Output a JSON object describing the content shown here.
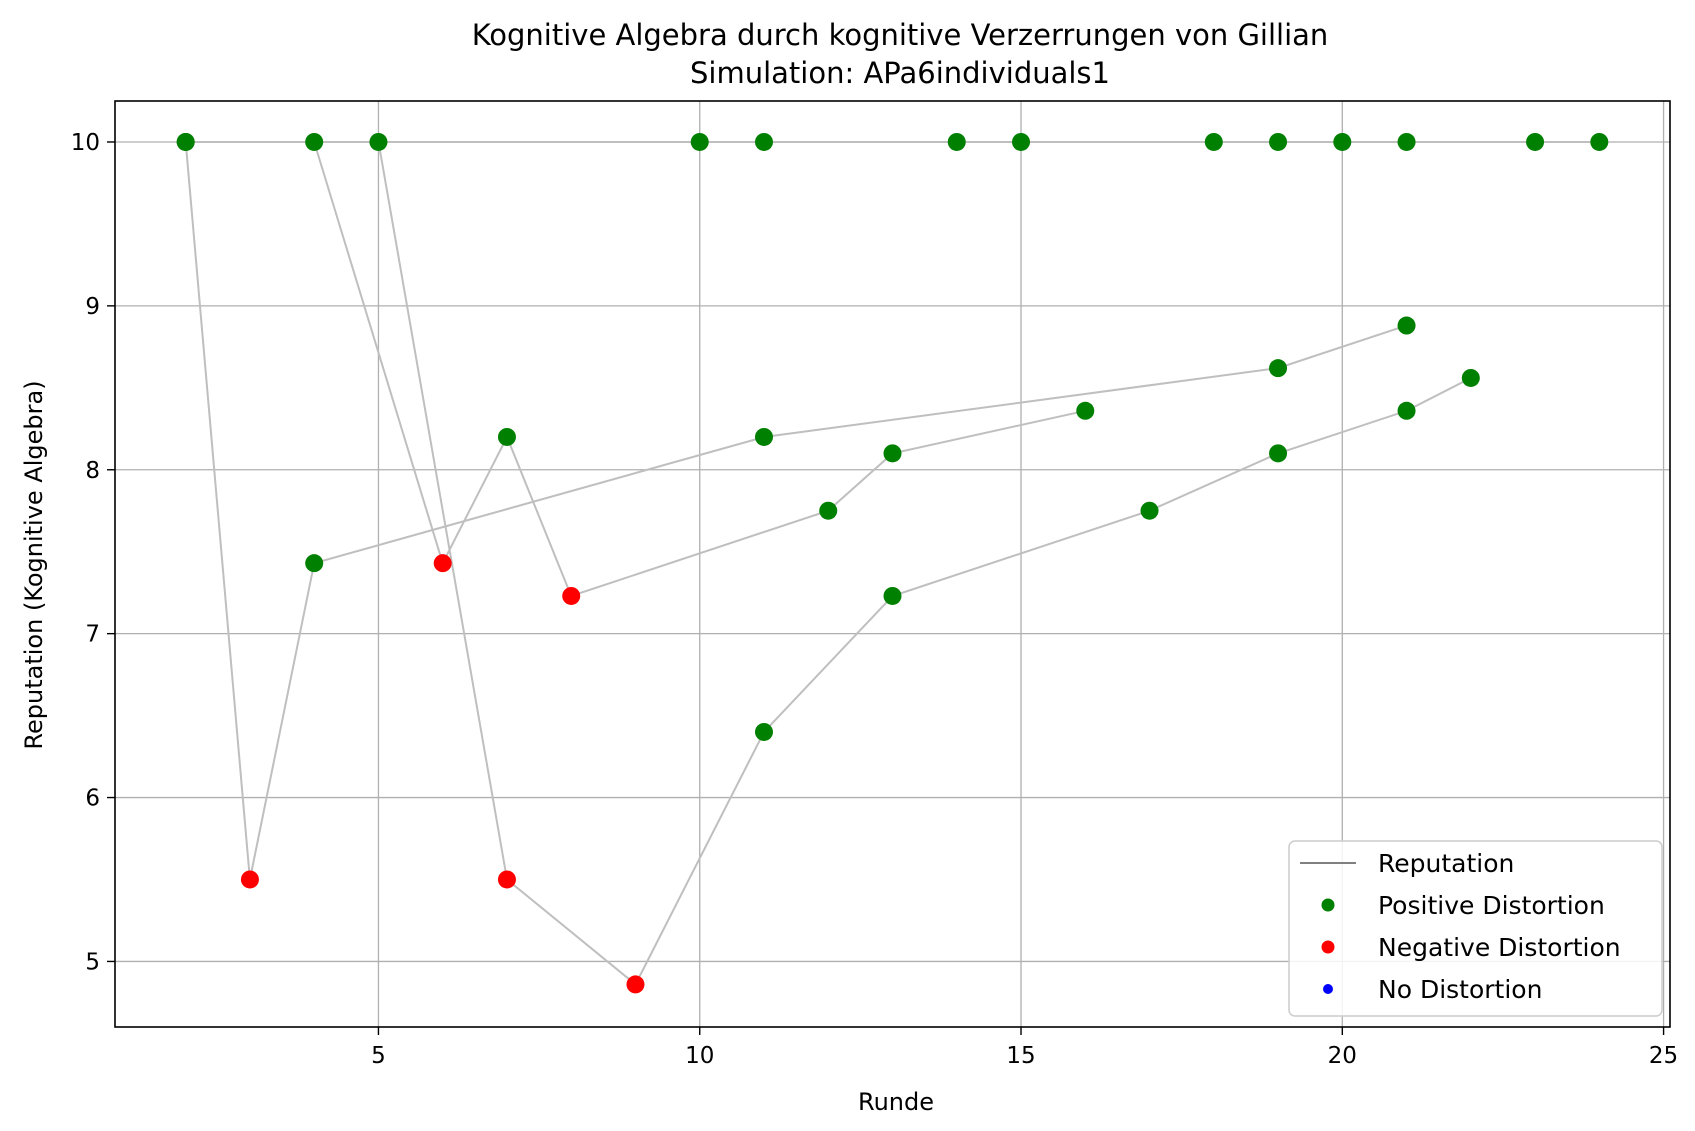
{
  "chart_data": {
    "type": "scatter",
    "title": "Kognitive Algebra durch kognitive Verzerrungen von Gillian",
    "subtitle": "Simulation: APa6individuals1",
    "xlabel": "Runde",
    "ylabel": "Reputation (Kognitive Algebra)",
    "xlim": [
      0.9,
      25.1
    ],
    "ylim": [
      4.6,
      10.25
    ],
    "xticks": [
      5,
      10,
      15,
      20,
      25
    ],
    "yticks": [
      5,
      6,
      7,
      8,
      9,
      10
    ],
    "grid": true,
    "legend_position": "lower-right",
    "colors": {
      "reputation_line": "#bfbfbf",
      "legend_line": "#808080",
      "positive": "#008000",
      "negative": "#ff0000",
      "none": "#0000ff",
      "grid": "#b0b0b0"
    },
    "legend": [
      {
        "label": "Reputation",
        "kind": "line",
        "color": "#808080"
      },
      {
        "label": "Positive Distortion",
        "kind": "marker",
        "color": "#008000"
      },
      {
        "label": "Negative Distortion",
        "kind": "marker",
        "color": "#ff0000"
      },
      {
        "label": "No Distortion",
        "kind": "marker",
        "color": "#0000ff"
      }
    ],
    "series": [
      {
        "points": [
          {
            "x": 2,
            "y": 10.0,
            "d": "positive"
          },
          {
            "x": 3,
            "y": 5.5,
            "d": "negative"
          },
          {
            "x": 4,
            "y": 7.43,
            "d": "positive"
          },
          {
            "x": 11,
            "y": 8.2,
            "d": "positive"
          },
          {
            "x": 19,
            "y": 8.62,
            "d": "positive"
          },
          {
            "x": 21,
            "y": 8.88,
            "d": "positive"
          }
        ]
      },
      {
        "points": [
          {
            "x": 4,
            "y": 10.0,
            "d": "positive"
          },
          {
            "x": 6,
            "y": 7.43,
            "d": "negative"
          },
          {
            "x": 7,
            "y": 8.2,
            "d": "positive"
          },
          {
            "x": 8,
            "y": 7.23,
            "d": "negative"
          },
          {
            "x": 12,
            "y": 7.75,
            "d": "positive"
          },
          {
            "x": 13,
            "y": 8.1,
            "d": "positive"
          },
          {
            "x": 16,
            "y": 8.36,
            "d": "positive"
          }
        ]
      },
      {
        "points": [
          {
            "x": 5,
            "y": 10.0,
            "d": "positive"
          },
          {
            "x": 7,
            "y": 5.5,
            "d": "negative"
          },
          {
            "x": 9,
            "y": 4.86,
            "d": "negative"
          },
          {
            "x": 11,
            "y": 6.4,
            "d": "positive"
          },
          {
            "x": 13,
            "y": 7.23,
            "d": "positive"
          },
          {
            "x": 17,
            "y": 7.75,
            "d": "positive"
          },
          {
            "x": 19,
            "y": 8.1,
            "d": "positive"
          },
          {
            "x": 21,
            "y": 8.36,
            "d": "positive"
          },
          {
            "x": 22,
            "y": 8.56,
            "d": "positive"
          }
        ]
      },
      {
        "points": [
          {
            "x": 2,
            "y": 10.0,
            "d": "positive"
          },
          {
            "x": 10,
            "y": 10.0,
            "d": "positive"
          },
          {
            "x": 11,
            "y": 10.0,
            "d": "positive"
          },
          {
            "x": 14,
            "y": 10.0,
            "d": "positive"
          },
          {
            "x": 15,
            "y": 10.0,
            "d": "positive"
          },
          {
            "x": 18,
            "y": 10.0,
            "d": "positive"
          },
          {
            "x": 19,
            "y": 10.0,
            "d": "positive"
          },
          {
            "x": 20,
            "y": 10.0,
            "d": "positive"
          },
          {
            "x": 21,
            "y": 10.0,
            "d": "positive"
          },
          {
            "x": 23,
            "y": 10.0,
            "d": "positive"
          },
          {
            "x": 24,
            "y": 10.0,
            "d": "positive"
          }
        ]
      }
    ]
  }
}
